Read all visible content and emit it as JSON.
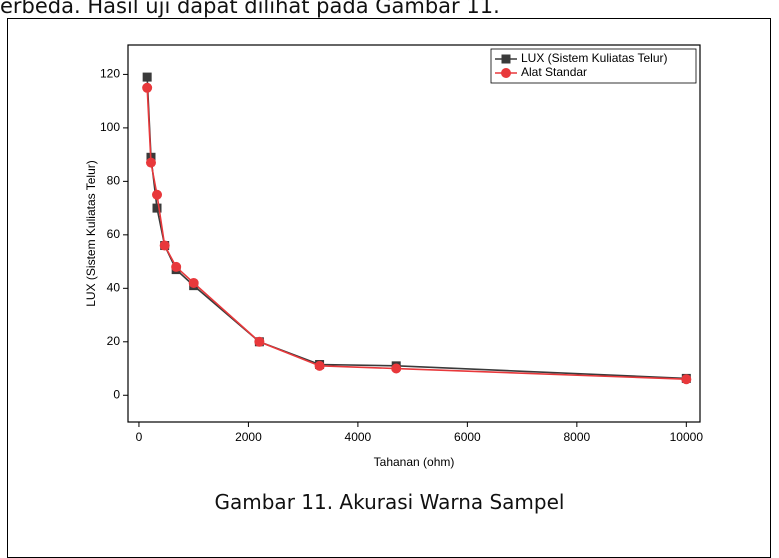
{
  "intro_text": "erbeda. Hasil uji dapat dilihat pada Gambar 11.",
  "caption": "Gambar 11. Akurasi Warna Sampel",
  "chart_data": {
    "type": "line",
    "xlabel": "Tahanan (ohm)",
    "ylabel": "LUX (Sistem Kuliatas Telur)",
    "x": [
      150,
      220,
      330,
      470,
      680,
      1000,
      2200,
      3300,
      4700,
      10000
    ],
    "series": [
      {
        "name": "LUX (Sistem Kuliatas Telur)",
        "color": "#3a3a3a",
        "marker": "square",
        "values": [
          119,
          89,
          70,
          56,
          47,
          41,
          20,
          11.5,
          11,
          6.3
        ]
      },
      {
        "name": "Alat Standar",
        "color": "#e8383b",
        "marker": "circle",
        "values": [
          115,
          87,
          75,
          56,
          48,
          42,
          20,
          11,
          10,
          6
        ]
      }
    ],
    "xlim": [
      -200,
      10250
    ],
    "ylim": [
      -10,
      131
    ],
    "xticks": [
      0,
      2000,
      4000,
      6000,
      8000,
      10000
    ],
    "yticks": [
      0,
      20,
      40,
      60,
      80,
      100,
      120
    ],
    "legend": "upper right"
  }
}
